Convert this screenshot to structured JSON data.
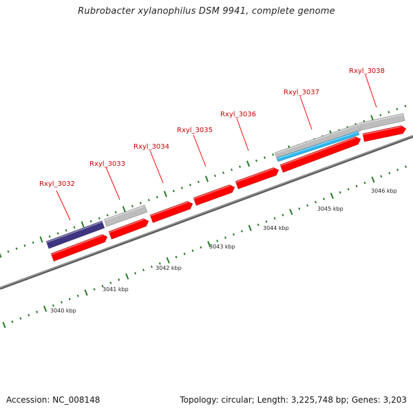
{
  "title": "Rubrobacter xylanophilus DSM 9941, complete genome",
  "accession": "Accession: NC_008148",
  "summary": "Topology: circular; Length: 3,225,748 bp; Genes: 3,203",
  "scale_labels": [
    "3040 kbp",
    "3041 kbp",
    "3042 kbp",
    "3043 kbp",
    "3044 kbp",
    "3045 kbp",
    "3046 kbp"
  ],
  "gene_labels": [
    "Rxyl_3032",
    "Rxyl_3033",
    "Rxyl_3034",
    "Rxyl_3035",
    "Rxyl_3036",
    "Rxyl_3037",
    "Rxyl_3038"
  ],
  "colors": {
    "backbone": "#808080",
    "cds": "#ff0000",
    "gene_gray": "#bdbdbd",
    "gene_purple": "#3d3580",
    "gene_cyan": "#29b6f0",
    "tick": "#1f7a1f",
    "label_red": "#cc0000"
  }
}
